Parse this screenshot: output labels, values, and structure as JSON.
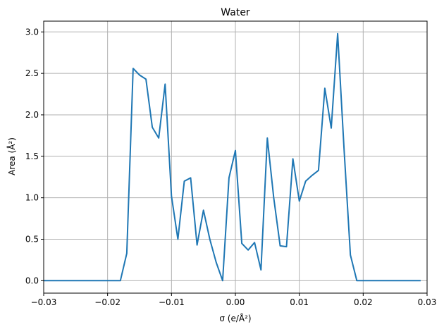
{
  "chart_data": {
    "type": "line",
    "title": "Water",
    "xlabel": "σ (e/Å²)",
    "ylabel": "Area (Å²)",
    "xlim": [
      -0.03,
      0.03
    ],
    "ylim": [
      -0.15,
      3.13
    ],
    "xticks": [
      -0.03,
      -0.02,
      -0.01,
      0.0,
      0.01,
      0.02,
      0.03
    ],
    "xtick_labels": [
      "−0.03",
      "−0.02",
      "−0.01",
      "0.00",
      "0.01",
      "0.02",
      "0.03"
    ],
    "yticks": [
      0.0,
      0.5,
      1.0,
      1.5,
      2.0,
      2.5,
      3.0
    ],
    "ytick_labels": [
      "0.0",
      "0.5",
      "1.0",
      "1.5",
      "2.0",
      "2.5",
      "3.0"
    ],
    "grid": true,
    "color": "#1f77b4",
    "x": [
      -0.03,
      -0.029,
      -0.028,
      -0.027,
      -0.026,
      -0.025,
      -0.024,
      -0.023,
      -0.022,
      -0.021,
      -0.02,
      -0.019,
      -0.018,
      -0.017,
      -0.016,
      -0.015,
      -0.014,
      -0.013,
      -0.012,
      -0.011,
      -0.01,
      -0.009,
      -0.008,
      -0.007,
      -0.006,
      -0.005,
      -0.004,
      -0.003,
      -0.002,
      -0.001,
      0.0,
      0.001,
      0.002,
      0.003,
      0.004,
      0.005,
      0.006,
      0.007,
      0.008,
      0.009,
      0.01,
      0.011,
      0.012,
      0.013,
      0.014,
      0.015,
      0.016,
      0.017,
      0.018,
      0.019,
      0.02,
      0.021,
      0.022,
      0.023,
      0.024,
      0.025,
      0.026,
      0.027,
      0.028,
      0.029
    ],
    "y": [
      0,
      0,
      0,
      0,
      0,
      0,
      0,
      0,
      0,
      0,
      0,
      0,
      0,
      0.33,
      2.56,
      2.48,
      2.43,
      1.85,
      1.72,
      2.37,
      1.02,
      0.5,
      1.2,
      1.24,
      0.43,
      0.85,
      0.5,
      0.22,
      0.0,
      1.24,
      1.57,
      0.45,
      0.37,
      0.46,
      0.13,
      1.72,
      1.0,
      0.42,
      0.41,
      1.47,
      0.96,
      1.2,
      1.27,
      1.33,
      2.32,
      1.84,
      2.98,
      1.6,
      0.31,
      0,
      0,
      0,
      0,
      0,
      0,
      0,
      0,
      0,
      0,
      0
    ]
  }
}
